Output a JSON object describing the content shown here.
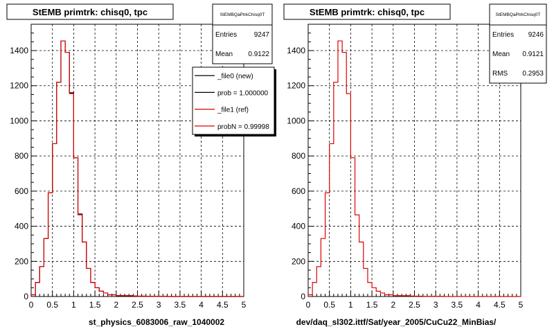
{
  "chart_data": [
    {
      "type": "bar",
      "title": "StEMB primtrk: chisq0, tpc",
      "xlabel": "st_physics_6083006_raw_1040002",
      "ylabel": "",
      "xlim": [
        0,
        5
      ],
      "ylim": [
        0,
        1550
      ],
      "xticks": [
        "0",
        "0.5",
        "1",
        "1.5",
        "2",
        "2.5",
        "3",
        "3.5",
        "4",
        "4.5",
        "5"
      ],
      "yticks": [
        "0",
        "200",
        "400",
        "600",
        "800",
        "1000",
        "1200",
        "1400"
      ],
      "grid": true,
      "bin_width": 0.1,
      "stats": {
        "name": "StEMBQaPtrkChisq0T",
        "rows": [
          {
            "label": "Entries",
            "value": "9247"
          },
          {
            "label": "Mean",
            "value": "0.9122"
          }
        ]
      },
      "legend": {
        "placement": "top-right",
        "entries": [
          "_file0 (new)",
          "prob = 1.000000",
          "_file1 (ref)",
          "probN = 0.99998"
        ],
        "colors": [
          "#000000",
          "#000000",
          "#dd0000",
          "#dd0000"
        ]
      },
      "series": [
        {
          "name": "_file0 (new)",
          "color": "#000000",
          "values": [
            10,
            80,
            170,
            330,
            590,
            870,
            1220,
            1455,
            1390,
            1160,
            790,
            470,
            310,
            160,
            80,
            50,
            30,
            20,
            10,
            10,
            5,
            5,
            5,
            5,
            3,
            2,
            2,
            1,
            1,
            1,
            1,
            1,
            0,
            0,
            0,
            0,
            0,
            0,
            0,
            0,
            0,
            0,
            0,
            0,
            0,
            0,
            0,
            0,
            0,
            0
          ]
        },
        {
          "name": "_file1 (ref)",
          "color": "#dd0000",
          "values": [
            10,
            80,
            170,
            330,
            590,
            870,
            1220,
            1455,
            1390,
            1155,
            790,
            465,
            310,
            160,
            80,
            50,
            30,
            20,
            10,
            10,
            5,
            5,
            5,
            5,
            3,
            2,
            2,
            1,
            1,
            1,
            1,
            1,
            0,
            0,
            0,
            0,
            0,
            0,
            0,
            0,
            0,
            0,
            0,
            0,
            0,
            0,
            0,
            0,
            0,
            0
          ]
        }
      ]
    },
    {
      "type": "bar",
      "title": "StEMB primtrk: chisq0, tpc",
      "xlabel": "dev/daq_sl302.ittf/Sat/year_2005/CuCu22_MinBias/",
      "ylabel": "",
      "xlim": [
        0,
        5
      ],
      "ylim": [
        0,
        1550
      ],
      "xticks": [
        "0",
        "0.5",
        "1",
        "1.5",
        "2",
        "2.5",
        "3",
        "3.5",
        "4",
        "4.5",
        "5"
      ],
      "yticks": [
        "0",
        "200",
        "400",
        "600",
        "800",
        "1000",
        "1200",
        "1400"
      ],
      "grid": true,
      "bin_width": 0.1,
      "stats": {
        "name": "StEMBQaPtrkChisq0T",
        "rows": [
          {
            "label": "Entries",
            "value": "9246"
          },
          {
            "label": "Mean",
            "value": "0.9121"
          },
          {
            "label": "RMS",
            "value": "0.2953"
          }
        ]
      },
      "series": [
        {
          "name": "",
          "color": "#dd0000",
          "values": [
            10,
            80,
            170,
            330,
            590,
            870,
            1220,
            1455,
            1390,
            1155,
            790,
            465,
            310,
            160,
            80,
            50,
            30,
            20,
            10,
            10,
            5,
            5,
            5,
            5,
            3,
            2,
            2,
            1,
            1,
            1,
            1,
            1,
            0,
            0,
            0,
            0,
            0,
            0,
            0,
            0,
            0,
            0,
            0,
            0,
            0,
            0,
            0,
            0,
            0,
            0
          ]
        }
      ]
    }
  ]
}
